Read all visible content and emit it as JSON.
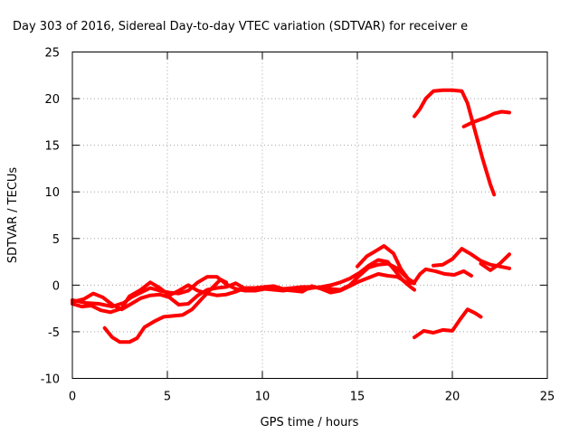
{
  "chart_data": {
    "type": "line",
    "title": "Day 303 of 2016, Sidereal Day-to-day VTEC variation (SDTVAR) for receiver e",
    "xlabel": "GPS time / hours",
    "ylabel": "SDTVAR / TECUs",
    "xlim": [
      0,
      25
    ],
    "ylim": [
      -10,
      25
    ],
    "x_ticks": [
      "0",
      "5",
      "10",
      "15",
      "20",
      "25"
    ],
    "y_ticks": [
      "-10",
      "-5",
      "0",
      "5",
      "10",
      "15",
      "20",
      "25"
    ],
    "grid": true,
    "series_color": "#ff0000",
    "series": [
      {
        "points": [
          [
            0,
            -1.6
          ],
          [
            0.7,
            -1.9
          ],
          [
            1.4,
            -2.0
          ],
          [
            2.1,
            -2.3
          ],
          [
            2.7,
            -1.9
          ],
          [
            3.1,
            -1.3
          ],
          [
            3.6,
            -0.8
          ],
          [
            4.1,
            -0.3
          ],
          [
            4.6,
            -0.6
          ],
          [
            5.1,
            -0.8
          ],
          [
            5.6,
            -0.9
          ],
          [
            6.1,
            -0.6
          ],
          [
            6.6,
            0.3
          ],
          [
            7.1,
            0.9
          ],
          [
            7.6,
            0.9
          ],
          [
            8.1,
            0.1
          ],
          [
            8.6,
            -0.4
          ],
          [
            9.1,
            -0.6
          ],
          [
            9.6,
            -0.6
          ],
          [
            10.1,
            -0.4
          ],
          [
            10.6,
            -0.5
          ],
          [
            11.1,
            -0.6
          ],
          [
            11.6,
            -0.4
          ],
          [
            12.1,
            -0.5
          ],
          [
            12.6,
            -0.3
          ],
          [
            13.1,
            -0.2
          ],
          [
            13.6,
            0.0
          ],
          [
            14.1,
            0.3
          ],
          [
            14.6,
            0.7
          ],
          [
            15.1,
            1.3
          ],
          [
            15.6,
            2.1
          ],
          [
            16.1,
            2.7
          ],
          [
            16.6,
            2.5
          ],
          [
            17.0,
            1.5
          ],
          [
            17.4,
            0.5
          ],
          [
            17.8,
            -0.2
          ],
          [
            18.0,
            -0.5
          ]
        ]
      },
      {
        "points": [
          [
            0,
            -2.0
          ],
          [
            0.5,
            -2.3
          ],
          [
            1.0,
            -2.2
          ],
          [
            1.5,
            -2.7
          ],
          [
            2.0,
            -2.9
          ],
          [
            2.6,
            -2.5
          ],
          [
            3.0,
            -1.2
          ],
          [
            3.6,
            -0.5
          ],
          [
            4.1,
            0.3
          ],
          [
            4.6,
            -0.3
          ],
          [
            5.1,
            -1.1
          ],
          [
            5.6,
            -0.6
          ],
          [
            6.1,
            0.0
          ],
          [
            6.6,
            -0.6
          ],
          [
            7.1,
            -0.9
          ],
          [
            7.6,
            -1.1
          ],
          [
            8.1,
            -1.0
          ],
          [
            8.6,
            -0.7
          ],
          [
            9.1,
            -0.3
          ],
          [
            9.6,
            -0.3
          ],
          [
            10.1,
            -0.2
          ],
          [
            10.6,
            -0.1
          ],
          [
            11.1,
            -0.4
          ],
          [
            11.6,
            -0.3
          ],
          [
            12.1,
            -0.2
          ],
          [
            12.6,
            -0.2
          ],
          [
            13.1,
            -0.3
          ],
          [
            13.6,
            -0.4
          ],
          [
            14.1,
            -0.5
          ],
          [
            14.6,
            0.0
          ],
          [
            15.1,
            1.0
          ],
          [
            15.6,
            1.9
          ],
          [
            16.1,
            2.2
          ],
          [
            16.6,
            2.3
          ],
          [
            17.1,
            1.8
          ],
          [
            17.6,
            0.8
          ],
          [
            18.0,
            0.2
          ]
        ]
      },
      {
        "points": [
          [
            0,
            -1.8
          ],
          [
            0.6,
            -1.5
          ],
          [
            1.1,
            -0.9
          ],
          [
            1.6,
            -1.3
          ],
          [
            2.1,
            -2.1
          ],
          [
            2.6,
            -2.6
          ],
          [
            3.1,
            -2.0
          ],
          [
            3.6,
            -1.4
          ],
          [
            4.1,
            -1.1
          ],
          [
            4.6,
            -1.0
          ],
          [
            5.1,
            -1.3
          ],
          [
            5.6,
            -2.1
          ],
          [
            6.1,
            -2.0
          ],
          [
            6.6,
            -1.1
          ],
          [
            7.1,
            -0.5
          ],
          [
            7.6,
            -0.3
          ],
          [
            8.1,
            -0.2
          ],
          [
            8.6,
            0.2
          ],
          [
            9.1,
            -0.4
          ],
          [
            9.6,
            -0.6
          ],
          [
            10.1,
            -0.4
          ],
          [
            10.6,
            -0.3
          ],
          [
            11.1,
            -0.5
          ],
          [
            11.6,
            -0.6
          ],
          [
            12.1,
            -0.7
          ],
          [
            12.6,
            -0.1
          ],
          [
            13.1,
            -0.4
          ],
          [
            13.6,
            -0.8
          ],
          [
            14.1,
            -0.6
          ],
          [
            14.6,
            -0.1
          ],
          [
            15.1,
            0.4
          ],
          [
            15.6,
            0.8
          ],
          [
            16.1,
            1.2
          ],
          [
            16.6,
            1.0
          ],
          [
            17.1,
            0.9
          ],
          [
            17.6,
            0.3
          ],
          [
            18.0,
            0.2
          ]
        ]
      },
      {
        "points": [
          [
            1.7,
            -4.6
          ],
          [
            2.1,
            -5.6
          ],
          [
            2.5,
            -6.1
          ],
          [
            3.0,
            -6.1
          ],
          [
            3.4,
            -5.7
          ],
          [
            3.8,
            -4.5
          ],
          [
            4.3,
            -3.9
          ],
          [
            4.8,
            -3.4
          ],
          [
            5.3,
            -3.3
          ],
          [
            5.8,
            -3.2
          ],
          [
            6.3,
            -2.6
          ],
          [
            6.8,
            -1.5
          ],
          [
            7.3,
            -0.4
          ],
          [
            7.8,
            0.6
          ],
          [
            8.1,
            0.3
          ]
        ]
      },
      {
        "points": [
          [
            15.0,
            2.0
          ],
          [
            15.5,
            3.1
          ],
          [
            16.0,
            3.7
          ],
          [
            16.4,
            4.2
          ],
          [
            16.9,
            3.4
          ],
          [
            17.3,
            1.7
          ],
          [
            17.7,
            0.6
          ],
          [
            18.0,
            0.3
          ]
        ]
      },
      {
        "points": [
          [
            18.0,
            0.3
          ],
          [
            18.3,
            1.2
          ],
          [
            18.6,
            1.7
          ],
          [
            19.1,
            1.5
          ],
          [
            19.6,
            1.2
          ],
          [
            20.1,
            1.1
          ],
          [
            20.6,
            1.5
          ],
          [
            21.0,
            1.0
          ]
        ]
      },
      {
        "points": [
          [
            19.0,
            2.1
          ],
          [
            19.5,
            2.2
          ],
          [
            20.0,
            2.8
          ],
          [
            20.5,
            3.9
          ],
          [
            21.0,
            3.3
          ],
          [
            21.5,
            2.6
          ],
          [
            22.0,
            2.2
          ],
          [
            22.5,
            2.0
          ],
          [
            23.0,
            1.8
          ]
        ]
      },
      {
        "points": [
          [
            21.5,
            2.3
          ],
          [
            22.0,
            1.6
          ],
          [
            22.5,
            2.3
          ],
          [
            23.0,
            3.3
          ]
        ]
      },
      {
        "points": [
          [
            18.0,
            -5.6
          ],
          [
            18.5,
            -4.9
          ],
          [
            19.0,
            -5.1
          ],
          [
            19.5,
            -4.8
          ],
          [
            20.0,
            -4.9
          ],
          [
            20.4,
            -3.7
          ],
          [
            20.8,
            -2.6
          ],
          [
            21.2,
            -3.0
          ],
          [
            21.5,
            -3.4
          ]
        ]
      },
      {
        "points": [
          [
            18.0,
            18.1
          ],
          [
            18.3,
            18.9
          ],
          [
            18.6,
            20.0
          ],
          [
            19.0,
            20.8
          ],
          [
            19.5,
            20.9
          ],
          [
            20.0,
            20.9
          ],
          [
            20.5,
            20.8
          ],
          [
            20.8,
            19.5
          ],
          [
            21.2,
            16.5
          ],
          [
            21.6,
            13.5
          ],
          [
            22.0,
            10.8
          ],
          [
            22.2,
            9.7
          ]
        ]
      },
      {
        "points": [
          [
            20.6,
            17.0
          ],
          [
            21.0,
            17.4
          ],
          [
            21.4,
            17.7
          ],
          [
            21.8,
            18.0
          ],
          [
            22.2,
            18.4
          ],
          [
            22.6,
            18.6
          ],
          [
            23.0,
            18.5
          ]
        ]
      }
    ]
  }
}
